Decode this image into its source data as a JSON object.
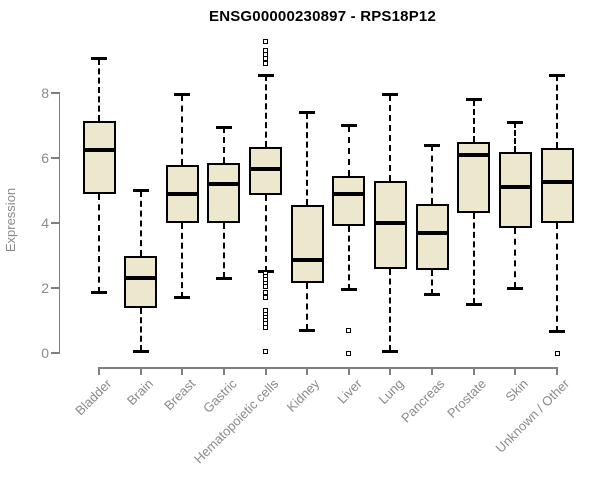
{
  "page": {
    "title": "ENSG00000230897 - RPS18P12"
  },
  "chart_data": {
    "type": "boxplot",
    "title": "ENSG00000230897 - RPS18P12",
    "ylabel": "Expression",
    "xlabel": "",
    "ylim": [
      0,
      9.7
    ],
    "yticks": [
      0,
      2,
      4,
      6,
      8
    ],
    "grid": false,
    "legend": "none",
    "x_tick_label_rotation_deg": 45,
    "categories": [
      "Bladder",
      "Brain",
      "Breast",
      "Gastric",
      "Hematopoietic cells",
      "Kidney",
      "Liver",
      "Lung",
      "Pancreas",
      "Prostate",
      "Skin",
      "Unknown / Other"
    ],
    "boxes": [
      {
        "category": "Bladder",
        "whisker_low": 1.85,
        "q1": 4.9,
        "median": 6.25,
        "q3": 7.15,
        "whisker_high": 9.05,
        "outliers": []
      },
      {
        "category": "Brain",
        "whisker_low": 0.05,
        "q1": 1.4,
        "median": 2.3,
        "q3": 3.0,
        "whisker_high": 5.0,
        "outliers": []
      },
      {
        "category": "Breast",
        "whisker_low": 1.7,
        "q1": 4.0,
        "median": 4.9,
        "q3": 5.8,
        "whisker_high": 7.95,
        "outliers": []
      },
      {
        "category": "Gastric",
        "whisker_low": 2.3,
        "q1": 4.0,
        "median": 5.2,
        "q3": 5.85,
        "whisker_high": 6.95,
        "outliers": []
      },
      {
        "category": "Hematopoietic cells",
        "whisker_low": 2.5,
        "q1": 4.85,
        "median": 5.65,
        "q3": 6.35,
        "whisker_high": 8.55,
        "outliers": [
          9.6,
          9.3,
          9.2,
          9.05,
          8.9,
          2.45,
          2.35,
          2.25,
          2.15,
          2.05,
          1.85,
          1.7,
          1.3,
          1.2,
          1.1,
          1.0,
          0.9,
          0.8,
          0.05
        ]
      },
      {
        "category": "Kidney",
        "whisker_low": 0.7,
        "q1": 2.15,
        "median": 2.85,
        "q3": 4.55,
        "whisker_high": 7.4,
        "outliers": []
      },
      {
        "category": "Liver",
        "whisker_low": 1.95,
        "q1": 3.9,
        "median": 4.9,
        "q3": 5.45,
        "whisker_high": 7.0,
        "outliers": [
          0.7,
          0.0
        ]
      },
      {
        "category": "Lung",
        "whisker_low": 0.05,
        "q1": 2.6,
        "median": 4.0,
        "q3": 5.3,
        "whisker_high": 7.95,
        "outliers": []
      },
      {
        "category": "Pancreas",
        "whisker_low": 1.8,
        "q1": 2.55,
        "median": 3.7,
        "q3": 4.6,
        "whisker_high": 6.4,
        "outliers": []
      },
      {
        "category": "Prostate",
        "whisker_low": 1.5,
        "q1": 4.3,
        "median": 6.1,
        "q3": 6.5,
        "whisker_high": 7.8,
        "outliers": []
      },
      {
        "category": "Skin",
        "whisker_low": 2.0,
        "q1": 3.85,
        "median": 5.1,
        "q3": 6.2,
        "whisker_high": 7.1,
        "outliers": []
      },
      {
        "category": "Unknown / Other",
        "whisker_low": 0.65,
        "q1": 4.0,
        "median": 5.25,
        "q3": 6.3,
        "whisker_high": 8.55,
        "outliers": [
          0.0
        ]
      }
    ],
    "colors": {
      "box_fill": "#ECE7CD",
      "box_border": "#000000",
      "median": "#000000",
      "axis": "#7F7F7F",
      "tick_text": "#8A8A8A",
      "title_text": "#000000",
      "background": "#FFFFFF"
    }
  }
}
